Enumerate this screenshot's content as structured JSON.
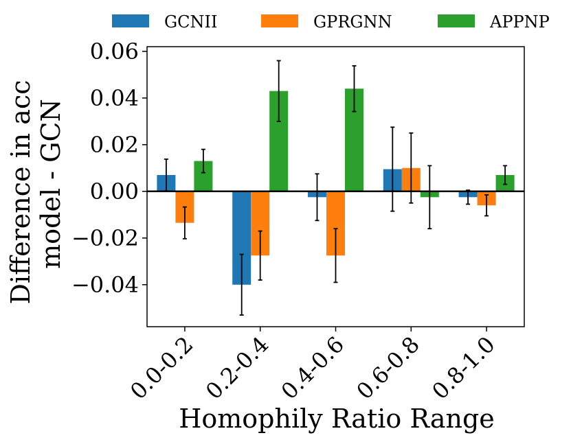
{
  "chart_data": {
    "type": "bar",
    "title": "",
    "xlabel": "Homophily Ratio Range",
    "ylabel_lines": [
      "Difference in acc",
      "model - GCN"
    ],
    "categories": [
      "0.0-0.2",
      "0.2-0.4",
      "0.4-0.6",
      "0.6-0.8",
      "0.8-1.0"
    ],
    "ylim": [
      -0.058,
      0.062
    ],
    "yticks": [
      -0.04,
      -0.02,
      0.0,
      0.02,
      0.04,
      0.06
    ],
    "ytick_labels": [
      "−0.04",
      "−0.02",
      "0.00",
      "0.02",
      "0.04",
      "0.06"
    ],
    "legend_position": "top, outside plot",
    "series": [
      {
        "name": "GCNII",
        "color": "#1f77b4",
        "values": [
          0.007,
          -0.04,
          -0.0025,
          0.0095,
          -0.0025
        ],
        "errors": [
          0.0068,
          0.013,
          0.01,
          0.018,
          0.003
        ]
      },
      {
        "name": "GPRGNN",
        "color": "#ff7f0e",
        "values": [
          -0.0135,
          -0.0275,
          -0.0275,
          0.01,
          -0.006
        ],
        "errors": [
          0.0068,
          0.0105,
          0.0115,
          0.015,
          0.0045
        ]
      },
      {
        "name": "APPNP",
        "color": "#2ca02c",
        "values": [
          0.013,
          0.043,
          0.044,
          -0.0025,
          0.007
        ],
        "errors": [
          0.005,
          0.013,
          0.0098,
          0.0135,
          0.004
        ]
      }
    ]
  }
}
